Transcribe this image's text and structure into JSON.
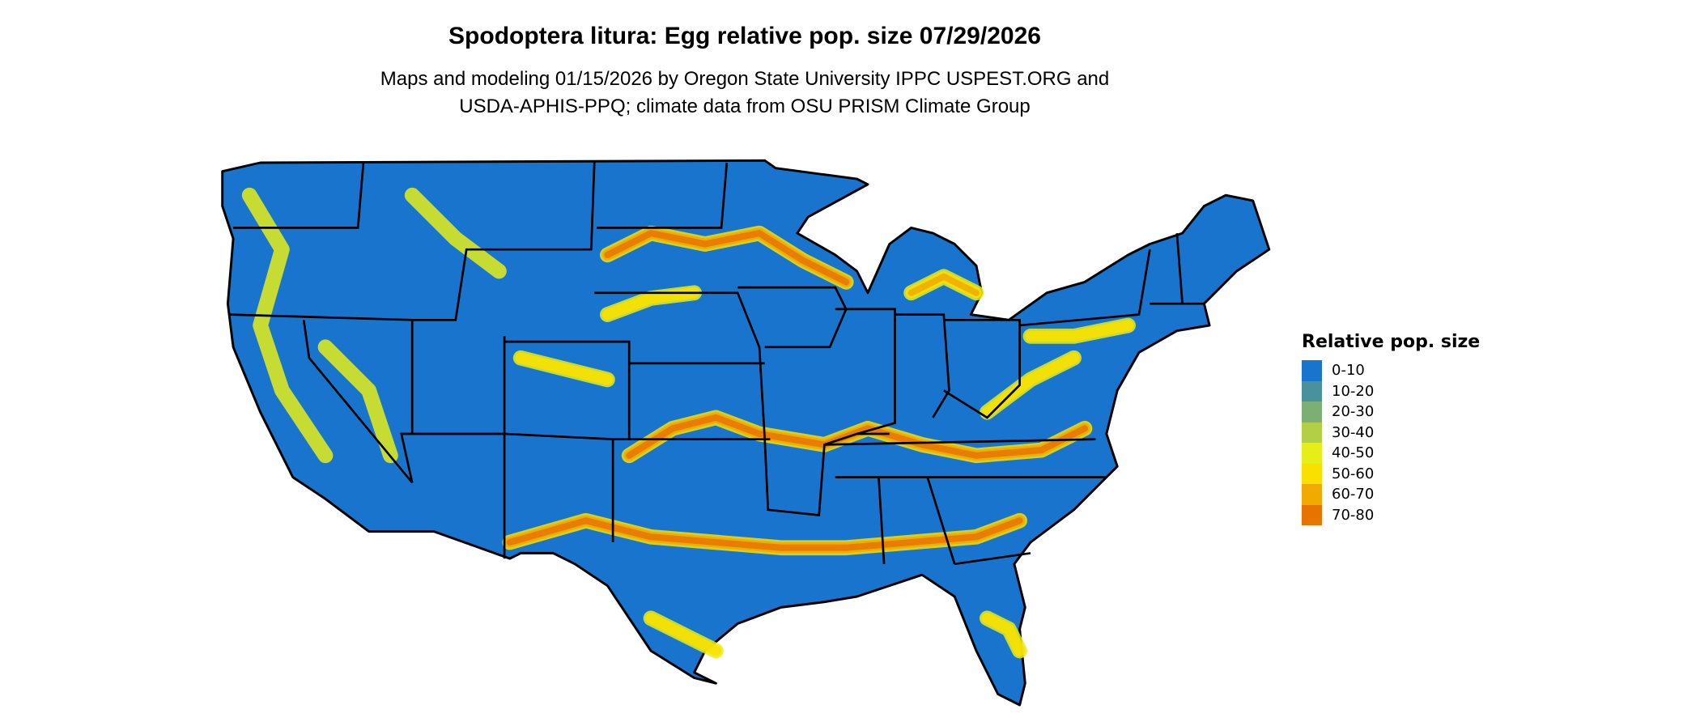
{
  "title": "Spodoptera litura: Egg relative pop. size 07/29/2026",
  "subtitle_line1": "Maps and modeling 01/15/2026 by Oregon State University IPPC USPEST.ORG and",
  "subtitle_line2": "USDA-APHIS-PPQ; climate data from OSU PRISM Climate Group",
  "map": {
    "region": "Contiguous United States",
    "base_color": "#1874CD",
    "border_color": "#000000"
  },
  "legend": {
    "title": "Relative pop. size",
    "items": [
      {
        "label": "0-10",
        "color": "#1874CD"
      },
      {
        "label": "10-20",
        "color": "#4A919E"
      },
      {
        "label": "20-30",
        "color": "#7DAF75"
      },
      {
        "label": "30-40",
        "color": "#B2CF46"
      },
      {
        "label": "40-50",
        "color": "#E5EE16"
      },
      {
        "label": "50-60",
        "color": "#FAE000"
      },
      {
        "label": "60-70",
        "color": "#F0AA00"
      },
      {
        "label": "70-80",
        "color": "#E87400"
      }
    ]
  }
}
